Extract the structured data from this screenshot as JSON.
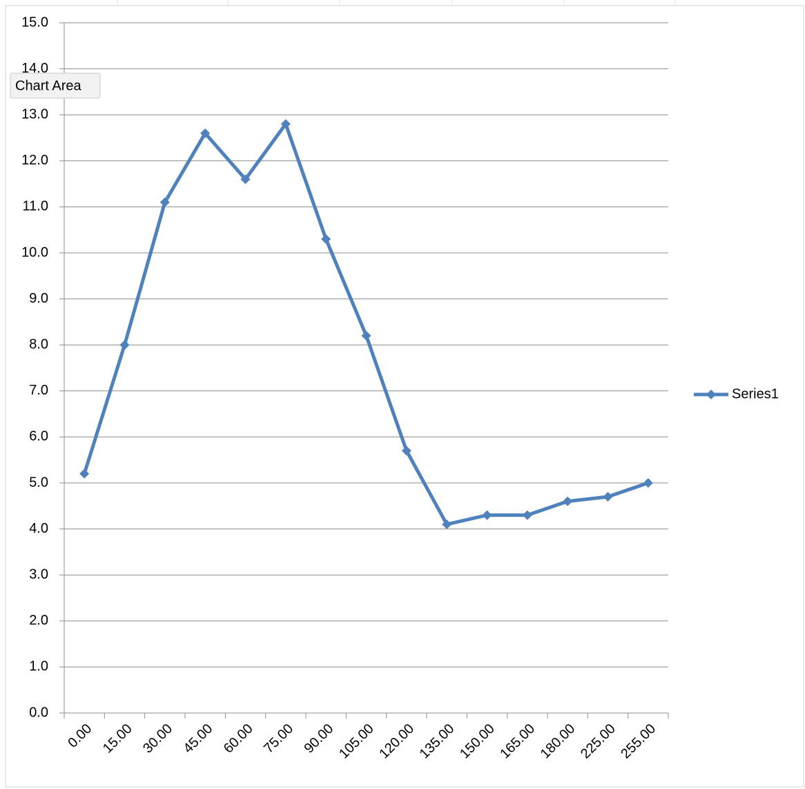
{
  "chart_data": {
    "type": "line",
    "categories": [
      "0.00",
      "15.00",
      "30.00",
      "45.00",
      "60.00",
      "75.00",
      "90.00",
      "105.00",
      "120.00",
      "135.00",
      "150.00",
      "165.00",
      "180.00",
      "225.00",
      "255.00"
    ],
    "series": [
      {
        "name": "Series1",
        "color": "#4f81bd",
        "values": [
          5.2,
          8.0,
          11.1,
          12.6,
          11.6,
          12.8,
          10.3,
          8.2,
          5.7,
          4.1,
          4.3,
          4.3,
          4.6,
          4.7,
          5.0
        ]
      }
    ],
    "ylim": [
      0,
      15
    ],
    "yticks": [
      {
        "value": 0,
        "label": "0.0"
      },
      {
        "value": 1,
        "label": "1.0"
      },
      {
        "value": 2,
        "label": "2.0"
      },
      {
        "value": 3,
        "label": "3.0"
      },
      {
        "value": 4,
        "label": "4.0"
      },
      {
        "value": 5,
        "label": "5.0"
      },
      {
        "value": 6,
        "label": "6.0"
      },
      {
        "value": 7,
        "label": "7.0"
      },
      {
        "value": 8,
        "label": "8.0"
      },
      {
        "value": 9,
        "label": "9.0"
      },
      {
        "value": 10,
        "label": "10.0"
      },
      {
        "value": 11,
        "label": "11.0"
      },
      {
        "value": 12,
        "label": "12.0"
      },
      {
        "value": 13,
        "label": "13.0"
      },
      {
        "value": 14,
        "label": "14.0"
      },
      {
        "value": 15,
        "label": "15.0"
      }
    ],
    "grid": true,
    "legend": "right",
    "tooltip": "Chart Area"
  }
}
